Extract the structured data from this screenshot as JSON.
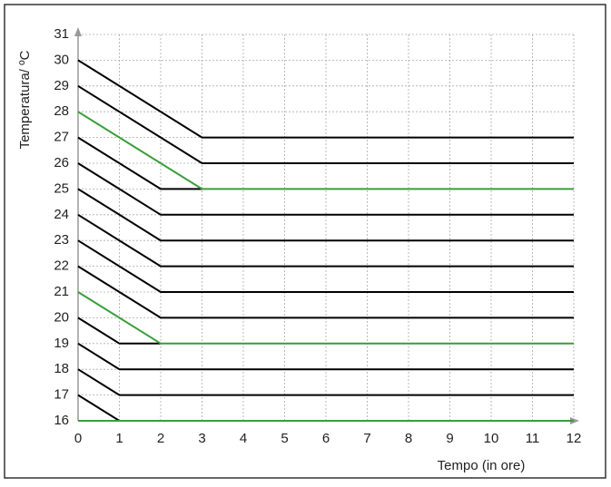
{
  "chart_data": {
    "type": "line",
    "y_label": "Temperatura/ ºC",
    "x_label": "Tempo (in ore)",
    "xlim": [
      0,
      12
    ],
    "xticks": [
      0,
      1,
      2,
      3,
      4,
      5,
      6,
      7,
      8,
      9,
      10,
      11,
      12
    ],
    "ylim": [
      16,
      31
    ],
    "yticks": [
      16,
      17,
      18,
      19,
      20,
      21,
      22,
      23,
      24,
      25,
      26,
      27,
      28,
      29,
      30,
      31
    ],
    "grid": true,
    "series": [
      {
        "color": "#000000",
        "x": [
          0,
          3,
          12
        ],
        "values": [
          30,
          27,
          27
        ]
      },
      {
        "color": "#000000",
        "x": [
          0,
          3,
          12
        ],
        "values": [
          29,
          26,
          26
        ]
      },
      {
        "color": "#000000",
        "x": [
          0,
          2,
          3
        ],
        "values": [
          27,
          25,
          25
        ]
      },
      {
        "color": "#000000",
        "x": [
          0,
          2,
          12
        ],
        "values": [
          26,
          24,
          24
        ]
      },
      {
        "color": "#000000",
        "x": [
          0,
          2,
          12
        ],
        "values": [
          25,
          23,
          23
        ]
      },
      {
        "color": "#000000",
        "x": [
          0,
          2,
          12
        ],
        "values": [
          24,
          22,
          22
        ]
      },
      {
        "color": "#000000",
        "x": [
          0,
          2,
          12
        ],
        "values": [
          23,
          21,
          21
        ]
      },
      {
        "color": "#000000",
        "x": [
          0,
          2,
          12
        ],
        "values": [
          22,
          20,
          20
        ]
      },
      {
        "color": "#000000",
        "x": [
          0,
          1,
          2
        ],
        "values": [
          20,
          19,
          19
        ]
      },
      {
        "color": "#000000",
        "x": [
          0,
          1,
          12
        ],
        "values": [
          19,
          18,
          18
        ]
      },
      {
        "color": "#000000",
        "x": [
          0,
          1,
          12
        ],
        "values": [
          18,
          17,
          17
        ]
      },
      {
        "color": "#000000",
        "x": [
          0,
          1
        ],
        "values": [
          17,
          16
        ]
      },
      {
        "color": "#3a9e3a",
        "x": [
          0,
          3,
          12
        ],
        "values": [
          28,
          25,
          25
        ]
      },
      {
        "color": "#3a9e3a",
        "x": [
          0,
          2,
          12
        ],
        "values": [
          21,
          19,
          19
        ]
      },
      {
        "color": "#3a9e3a",
        "x": [
          0,
          12
        ],
        "values": [
          16,
          16
        ]
      }
    ]
  }
}
